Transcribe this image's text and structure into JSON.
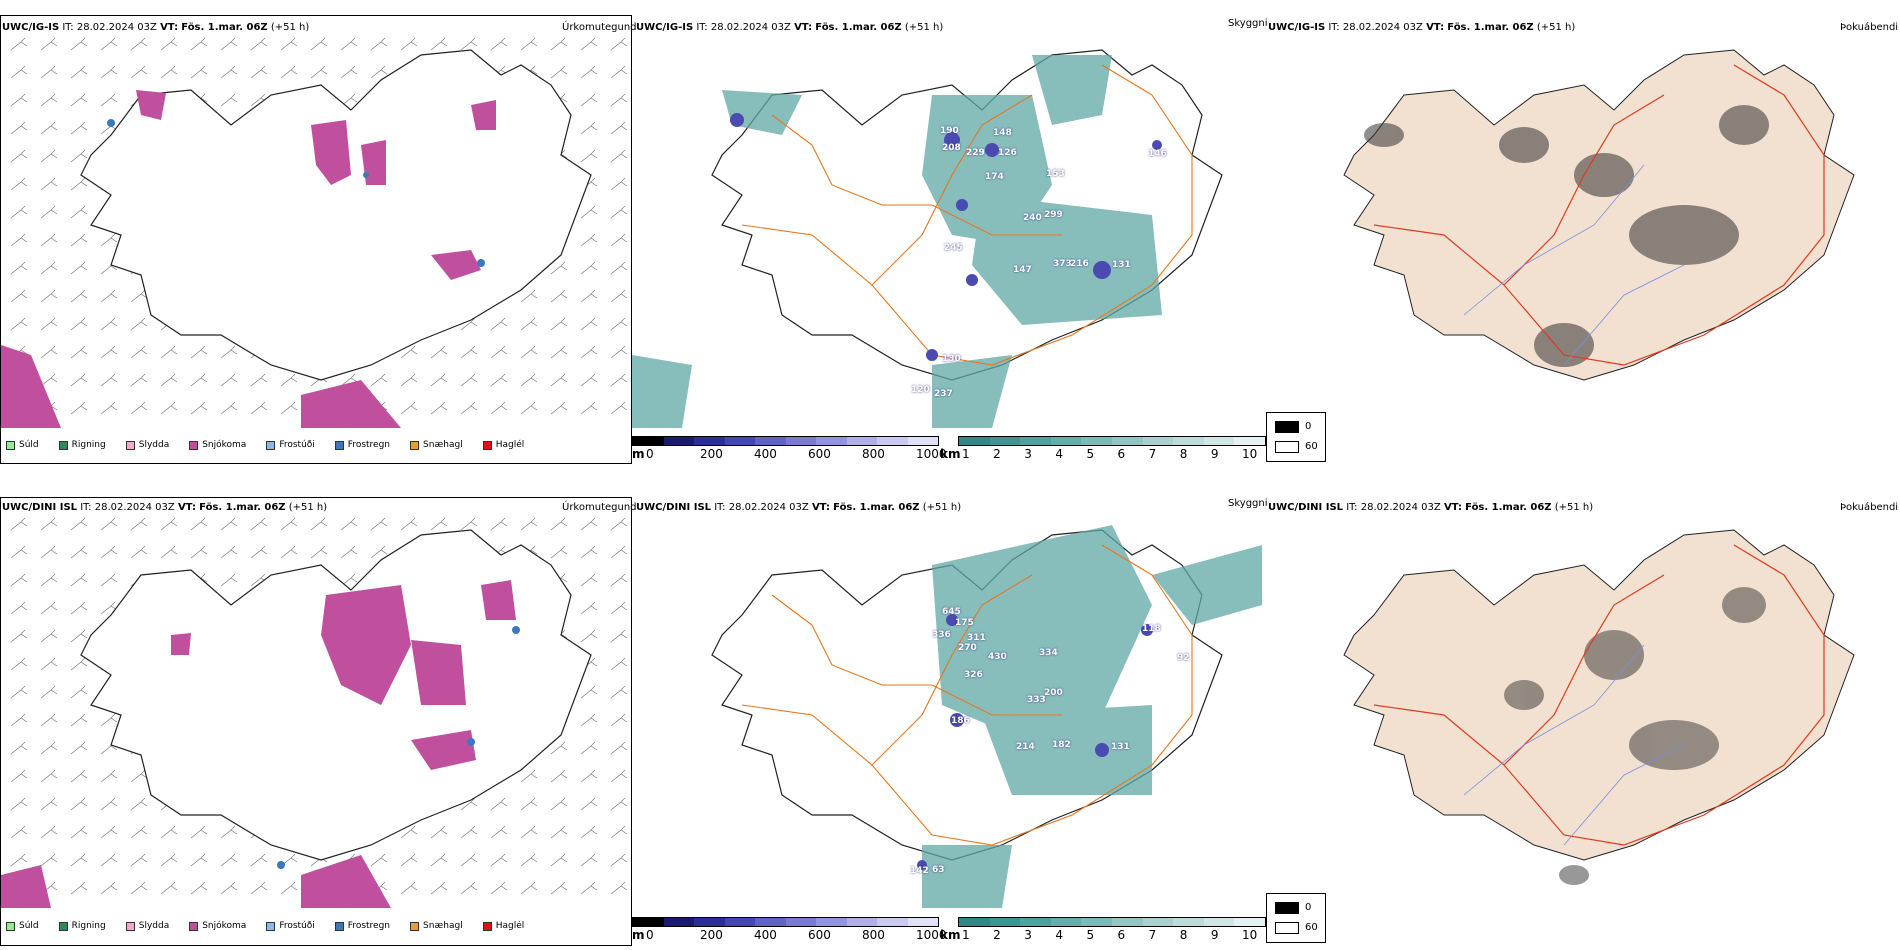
{
  "rows": [
    {
      "id": "igis",
      "panels": {
        "left": {
          "model": "UWC/IG-IS",
          "it_label": "IT:",
          "it_value": "28.02.2024 03Z",
          "vt_label": "VT:",
          "vt_value": "Fös. 1.mar. 06Z",
          "lead": "(+51 h)",
          "title": "Úrkomutegund"
        },
        "mid": {
          "model": "UWC/IG-IS",
          "it_label": "IT:",
          "it_value": "28.02.2024 03Z",
          "vt_label": "VT:",
          "vt_value": "Fös. 1.mar. 06Z",
          "lead": "(+51 h)",
          "title": "Skyggni"
        },
        "right": {
          "model": "UWC/IG-IS",
          "it_label": "IT:",
          "it_value": "28.02.2024 03Z",
          "vt_label": "VT:",
          "vt_value": "Fös. 1.mar. 06Z",
          "lead": "(+51 h)",
          "title": "Þokuábendi"
        }
      },
      "cloud_base_labels": [
        "190",
        "148",
        "208",
        "229",
        "126",
        "174",
        "153",
        "299",
        "245",
        "240",
        "147",
        "373",
        "216",
        "131",
        "146",
        "130",
        "237",
        "120"
      ]
    },
    {
      "id": "dini",
      "panels": {
        "left": {
          "model": "UWC/DINI ISL",
          "it_label": "IT:",
          "it_value": "28.02.2024 03Z",
          "vt_label": "VT:",
          "vt_value": "Fös. 1.mar. 06Z",
          "lead": "(+51 h)",
          "title": "Úrkomutegund"
        },
        "mid": {
          "model": "UWC/DINI ISL",
          "it_label": "IT:",
          "it_value": "28.02.2024 03Z",
          "vt_label": "VT:",
          "vt_value": "Fös. 1.mar. 06Z",
          "lead": "(+51 h)",
          "title": "Skyggni"
        },
        "right": {
          "model": "UWC/DINI ISL",
          "it_label": "IT:",
          "it_value": "28.02.2024 03Z",
          "vt_label": "VT:",
          "vt_value": "Fös. 1.mar. 06Z",
          "lead": "(+51 h)",
          "title": "Þokuábendi"
        }
      },
      "cloud_base_labels": [
        "645",
        "175",
        "336",
        "311",
        "270",
        "430",
        "334",
        "326",
        "200",
        "333",
        "186",
        "214",
        "182",
        "131",
        "118",
        "92",
        "142",
        "63"
      ]
    }
  ],
  "precip_legend": [
    {
      "label": "Súld",
      "color": "#90ee90"
    },
    {
      "label": "Rigning",
      "color": "#2e8b57"
    },
    {
      "label": "Slydda",
      "color": "#f4a8d0"
    },
    {
      "label": "Snjókoma",
      "color": "#c0509e"
    },
    {
      "label": "Frostúði",
      "color": "#8ab8e8"
    },
    {
      "label": "Frostregn",
      "color": "#3a78c0"
    },
    {
      "label": "Snæhagl",
      "color": "#f29a2e"
    },
    {
      "label": "Haglél",
      "color": "#e01010"
    }
  ],
  "cloud_base_scale": {
    "unit": "m",
    "ticks": [
      "0",
      "200",
      "400",
      "600",
      "800",
      "1000"
    ],
    "colors": [
      "#000000",
      "#1a1a6e",
      "#2c2c9a",
      "#4545b8",
      "#6262c4",
      "#7a7ad0",
      "#9494dc",
      "#b0b0e6",
      "#cacaf0",
      "#e0e0f8"
    ]
  },
  "visibility_scale": {
    "unit": "km",
    "ticks": [
      "1",
      "2",
      "3",
      "4",
      "5",
      "6",
      "7",
      "8",
      "9",
      "10"
    ],
    "colors": [
      "#2f8a87",
      "#3f9592",
      "#53a19e",
      "#68adaa",
      "#7db9b6",
      "#93c5c3",
      "#a8d1cf",
      "#bcdcdb",
      "#d0e7e6",
      "#e6f2f2"
    ]
  },
  "fog_legend": [
    {
      "label": "0",
      "color": "#000000"
    },
    {
      "label": "60",
      "color": "#ffffff"
    }
  ],
  "colors": {
    "land_fog": "#f2e0d0",
    "roads": "#e8761e",
    "rivers": "#7a8ee0",
    "snow": "#c0509e",
    "vis": "#5fa8a5",
    "cloud": "#4a4ab0"
  }
}
